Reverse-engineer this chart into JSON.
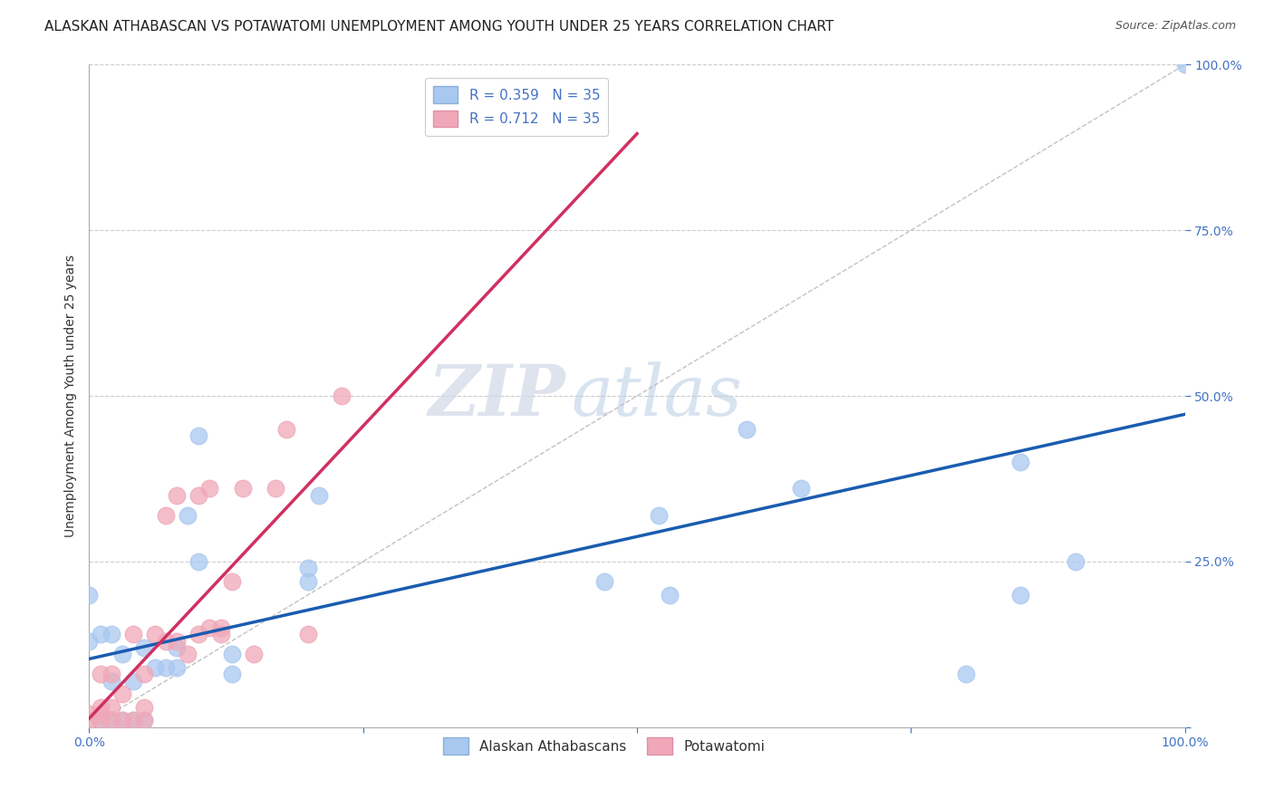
{
  "title": "ALASKAN ATHABASCAN VS POTAWATOMI UNEMPLOYMENT AMONG YOUTH UNDER 25 YEARS CORRELATION CHART",
  "source": "Source: ZipAtlas.com",
  "ylabel": "Unemployment Among Youth under 25 years",
  "legend_label1": "Alaskan Athabascans",
  "legend_label2": "Potawatomi",
  "R1": "0.359",
  "N1": "35",
  "R2": "0.712",
  "N2": "35",
  "color_blue": "#A8C8F0",
  "color_pink": "#F0A8B8",
  "line_blue": "#1A5CB0",
  "line_pink": "#D03060",
  "line_diagonal": "#BBBBBB",
  "watermark_zip": "ZIP",
  "watermark_atlas": "atlas",
  "blue_points_x": [
    0.0,
    0.0,
    0.01,
    0.01,
    0.02,
    0.02,
    0.02,
    0.03,
    0.03,
    0.04,
    0.04,
    0.05,
    0.05,
    0.06,
    0.07,
    0.08,
    0.08,
    0.09,
    0.1,
    0.1,
    0.13,
    0.13,
    0.2,
    0.2,
    0.21,
    0.47,
    0.52,
    0.53,
    0.6,
    0.65,
    0.8,
    0.85,
    0.85,
    0.9,
    1.0
  ],
  "blue_points_y": [
    0.13,
    0.2,
    0.01,
    0.14,
    0.01,
    0.07,
    0.14,
    0.01,
    0.11,
    0.01,
    0.07,
    0.01,
    0.12,
    0.09,
    0.09,
    0.09,
    0.12,
    0.32,
    0.25,
    0.44,
    0.08,
    0.11,
    0.22,
    0.24,
    0.35,
    0.22,
    0.32,
    0.2,
    0.45,
    0.36,
    0.08,
    0.2,
    0.4,
    0.25,
    1.0
  ],
  "pink_points_x": [
    0.0,
    0.0,
    0.01,
    0.01,
    0.01,
    0.01,
    0.02,
    0.02,
    0.02,
    0.03,
    0.03,
    0.04,
    0.04,
    0.05,
    0.05,
    0.05,
    0.06,
    0.07,
    0.07,
    0.08,
    0.08,
    0.09,
    0.1,
    0.1,
    0.11,
    0.11,
    0.12,
    0.12,
    0.13,
    0.14,
    0.15,
    0.17,
    0.18,
    0.2,
    0.23
  ],
  "pink_points_y": [
    0.01,
    0.02,
    0.01,
    0.02,
    0.03,
    0.08,
    0.01,
    0.03,
    0.08,
    0.01,
    0.05,
    0.01,
    0.14,
    0.01,
    0.03,
    0.08,
    0.14,
    0.13,
    0.32,
    0.13,
    0.35,
    0.11,
    0.14,
    0.35,
    0.15,
    0.36,
    0.14,
    0.15,
    0.22,
    0.36,
    0.11,
    0.36,
    0.45,
    0.14,
    0.5
  ],
  "xlim": [
    0,
    1.0
  ],
  "ylim": [
    0,
    1.0
  ],
  "bg_color": "#FFFFFF",
  "plot_bg": "#FFFFFF",
  "grid_color": "#CCCCCC",
  "title_fontsize": 11,
  "source_fontsize": 9,
  "axis_tick_fontsize": 10
}
